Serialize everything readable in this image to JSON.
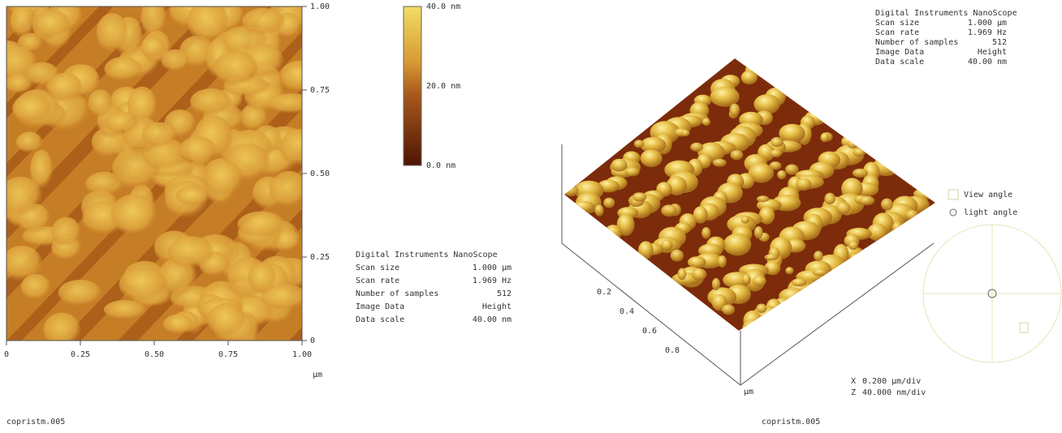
{
  "image2d": {
    "y_ticks": [
      "1.00",
      "0.75",
      "0.50",
      "0.25",
      "0"
    ],
    "x_ticks": [
      "0",
      "0.25",
      "0.50",
      "0.75",
      "1.00"
    ],
    "x_unit": "µm",
    "filename": "copristm.005"
  },
  "colorbar": {
    "labels": [
      "40.0 nm",
      "20.0 nm",
      "0.0 nm"
    ]
  },
  "info_left": {
    "title": "Digital Instruments NanoScope",
    "rows": [
      [
        "Scan size",
        "1.000 µm"
      ],
      [
        "Scan rate",
        "1.969 Hz"
      ],
      [
        "Number of samples",
        "512"
      ],
      [
        "Image Data",
        "Height"
      ],
      [
        "Data scale",
        "40.00 nm"
      ]
    ]
  },
  "info_right": {
    "title": "Digital Instruments NanoScope",
    "rows": [
      [
        "Scan size",
        "1.000 µm"
      ],
      [
        "Scan rate",
        "1.969 Hz"
      ],
      [
        "Number of samples",
        "512"
      ],
      [
        "Image Data",
        "Height"
      ],
      [
        "Data scale",
        "40.00 nm"
      ]
    ]
  },
  "view3d": {
    "axis_labels": [
      "0.2",
      "0.4",
      "0.6",
      "0.8"
    ],
    "axis_unit": "µm",
    "legend": [
      "View angle",
      "light angle"
    ],
    "scale": [
      [
        "X",
        "0.200 µm/div"
      ],
      [
        "Z",
        "40.000 nm/div"
      ]
    ],
    "filename": "copristm.005"
  }
}
